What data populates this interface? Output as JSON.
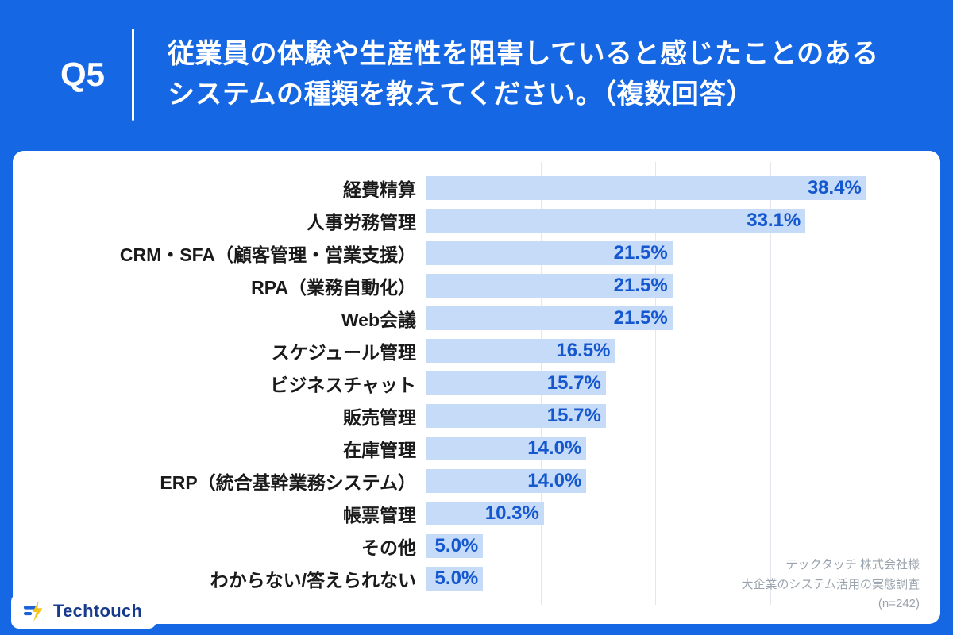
{
  "header": {
    "question_label": "Q5",
    "title_line1": "従業員の体験や生産性を阻害していると感じたことのある",
    "title_line2": "システムの種類を教えてください。（複数回答）"
  },
  "chart_data": {
    "type": "bar",
    "orientation": "horizontal",
    "title": "従業員の体験や生産性を阻害していると感じたことのあるシステムの種類を教えてください。（複数回答）",
    "categories": [
      "経費精算",
      "人事労務管理",
      "CRM・SFA（顧客管理・営業支援）",
      "RPA（業務自動化）",
      "Web会議",
      "スケジュール管理",
      "ビジネスチャット",
      "販売管理",
      "在庫管理",
      "ERP（統合基幹業務システム）",
      "帳票管理",
      "その他",
      "わからない/答えられない"
    ],
    "values": [
      38.4,
      33.1,
      21.5,
      21.5,
      21.5,
      16.5,
      15.7,
      15.7,
      14.0,
      14.0,
      10.3,
      5.0,
      5.0
    ],
    "value_labels": [
      "38.4%",
      "33.1%",
      "21.5%",
      "21.5%",
      "21.5%",
      "16.5%",
      "15.7%",
      "15.7%",
      "14.0%",
      "14.0%",
      "10.3%",
      "5.0%",
      "5.0%"
    ],
    "xlabel": "",
    "ylabel": "",
    "xlim": [
      0,
      40
    ],
    "gridline_ticks": [
      0,
      10,
      20,
      30,
      40
    ],
    "grid": "vertical-only",
    "legend": "none",
    "sample_size": "n=242"
  },
  "source": {
    "line1": "テックタッチ 株式会社様",
    "line2": "大企業のシステム活用の実態調査",
    "line3": "(n=242)"
  },
  "logo": {
    "text": "Techtouch"
  },
  "colors": {
    "background": "#1567E4",
    "card": "#FFFFFF",
    "bar_fill": "#C6DBF7",
    "value_text": "#1457CF",
    "category_text": "#1A1A1A",
    "gridline": "#E4E7EB",
    "source_text": "#9AA3AD",
    "logo_text": "#173A8C",
    "logo_accent": "#F5C518",
    "logo_icon_blue": "#1E63D6"
  }
}
